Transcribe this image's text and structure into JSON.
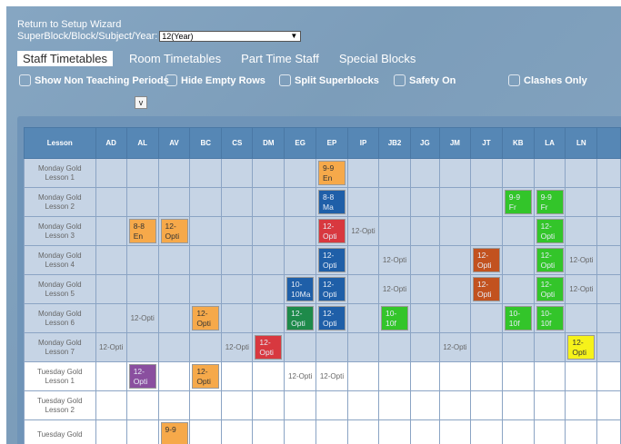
{
  "header": {
    "setup_link": "Return to Setup Wizard",
    "selector_label": "SuperBlock/Block/Subject/Year:",
    "selector_value": "12(Year)"
  },
  "tabs": [
    "Staff Timetables",
    "Room Timetables",
    "Part Time Staff",
    "Special Blocks"
  ],
  "options": {
    "show_non_teaching": "Show Non Teaching Periods",
    "hide_empty_rows": "Hide Empty Rows",
    "split_superblocks": "Split Superblocks",
    "safety_on": "Safety On",
    "clashes_only": "Clashes Only",
    "v_button": "v"
  },
  "colors": {
    "orange": "#f6a94a",
    "blue": "#1f5fa8",
    "red": "#d8383f",
    "green": "#33c52a",
    "rust": "#c2521f",
    "purple": "#8a4f9f",
    "darkgreen": "#1e8a4a",
    "yellow": "#f6f21a"
  },
  "table": {
    "lesson_header": "Lesson",
    "staff": [
      "AD",
      "AL",
      "AV",
      "BC",
      "CS",
      "DM",
      "EG",
      "EP",
      "IP",
      "JB2",
      "JG",
      "JM",
      "JT",
      "KB",
      "LA",
      "LN"
    ],
    "rows": [
      {
        "day": "Monday Gold",
        "lesson": "Lesson 1",
        "kind": "mon",
        "cells": {
          "EP": {
            "l1": "9-9",
            "l2": "En",
            "color": "orange"
          }
        }
      },
      {
        "day": "Monday Gold",
        "lesson": "Lesson 2",
        "kind": "mon",
        "cells": {
          "EP": {
            "l1": "8-8",
            "l2": "Ma",
            "color": "blue"
          },
          "KB": {
            "l1": "9-9",
            "l2": "Fr",
            "color": "green"
          },
          "LA": {
            "l1": "9-9",
            "l2": "Fr",
            "color": "green"
          }
        }
      },
      {
        "day": "Monday Gold",
        "lesson": "Lesson 3",
        "kind": "mon",
        "cells": {
          "AL": {
            "l1": "8-8",
            "l2": "En",
            "color": "orange"
          },
          "AV": {
            "l1": "12-",
            "l2": "Opti",
            "color": "orange"
          },
          "EP": {
            "l1": "12-",
            "l2": "Opti",
            "color": "red"
          },
          "IP": {
            "text": "12-Opti"
          },
          "LA": {
            "l1": "12-",
            "l2": "Opti",
            "color": "green"
          }
        }
      },
      {
        "day": "Monday Gold",
        "lesson": "Lesson 4",
        "kind": "mon",
        "cells": {
          "EP": {
            "l1": "12-",
            "l2": "Opti",
            "color": "blue"
          },
          "JB2": {
            "text": "12-Opti"
          },
          "JT": {
            "l1": "12-",
            "l2": "Opti",
            "color": "rust"
          },
          "LA": {
            "l1": "12-",
            "l2": "Opti",
            "color": "green"
          },
          "LN": {
            "text": "12-Opti"
          }
        }
      },
      {
        "day": "Monday Gold",
        "lesson": "Lesson 5",
        "kind": "mon",
        "cells": {
          "EG": {
            "l1": "10-",
            "l2": "10Ma",
            "color": "blue"
          },
          "EP": {
            "l1": "12-",
            "l2": "Opti",
            "color": "blue"
          },
          "JB2": {
            "text": "12-Opti"
          },
          "JT": {
            "l1": "12-",
            "l2": "Opti",
            "color": "rust"
          },
          "LA": {
            "l1": "12-",
            "l2": "Opti",
            "color": "green"
          },
          "LN": {
            "text": "12-Opti"
          }
        }
      },
      {
        "day": "Monday Gold",
        "lesson": "Lesson 6",
        "kind": "mon",
        "cells": {
          "AL": {
            "text": "12-Opti"
          },
          "BC": {
            "l1": "12-",
            "l2": "Opti",
            "color": "orange"
          },
          "EG": {
            "l1": "12-",
            "l2": "Opti",
            "color": "darkgreen"
          },
          "EP": {
            "l1": "12-",
            "l2": "Opti",
            "color": "blue"
          },
          "JB2": {
            "l1": "10-",
            "l2": "10f",
            "color": "green"
          },
          "KB": {
            "l1": "10-",
            "l2": "10f",
            "color": "green"
          },
          "LA": {
            "l1": "10-",
            "l2": "10f",
            "color": "green"
          }
        }
      },
      {
        "day": "Monday Gold",
        "lesson": "Lesson 7",
        "kind": "mon",
        "cells": {
          "AD": {
            "text": "12-Opti"
          },
          "CS": {
            "text": "12-Opti"
          },
          "DM": {
            "l1": "12-",
            "l2": "Opti",
            "color": "red"
          },
          "JM": {
            "text": "12-Opti"
          },
          "LN": {
            "l1": "12-",
            "l2": "Opti",
            "color": "yellow"
          }
        }
      },
      {
        "day": "Tuesday Gold",
        "lesson": "Lesson 1",
        "kind": "tue",
        "cells": {
          "AL": {
            "l1": "12-",
            "l2": "Opti",
            "color": "purple"
          },
          "BC": {
            "l1": "12-",
            "l2": "Opti",
            "color": "orange"
          },
          "EG": {
            "text": "12-Opti"
          },
          "EP": {
            "text": "12-Opti"
          }
        }
      },
      {
        "day": "Tuesday Gold",
        "lesson": "Lesson 2",
        "kind": "tue",
        "cells": {}
      },
      {
        "day": "Tuesday Gold",
        "lesson": "",
        "kind": "tue",
        "cells": {
          "AV": {
            "l1": "9-9",
            "l2": "",
            "color": "orange"
          }
        }
      }
    ]
  }
}
